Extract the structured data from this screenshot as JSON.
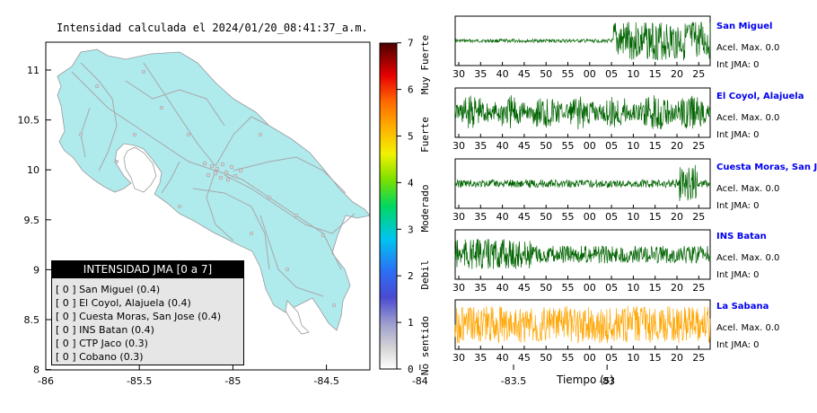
{
  "map": {
    "title": "Intensidad calculada el 2024/01/20_08:41:37_a.m.",
    "x_ticks": [
      "-86",
      "-85.5",
      "-85",
      "-84.5",
      "-84",
      "-83.5",
      "-83"
    ],
    "y_ticks": [
      "11",
      "10.5",
      "10",
      "9.5",
      "9",
      "8.5",
      "8"
    ],
    "colors": {
      "land": "#afeaed",
      "roads": "#a8a8a8",
      "sea": "#ffffff",
      "legend_bg": "#e6e6e6"
    }
  },
  "legend": {
    "title": "INTENSIDAD JMA [0 a 7]",
    "items": [
      "[ 0 ] San Miguel (0.4)",
      "[ 0 ] El Coyol, Alajuela (0.4)",
      "[ 0 ] Cuesta Moras, San Jose (0.4)",
      "[ 0 ] INS Batan (0.4)",
      "[ 0 ] CTP Jaco (0.3)",
      "[ 0 ] Cobano (0.3)"
    ]
  },
  "scale": {
    "ticks": [
      "0",
      "1",
      "2",
      "3",
      "4",
      "5",
      "6",
      "7"
    ],
    "labels": [
      "No sentido",
      "Debil",
      "Moderado",
      "Fuerte",
      "Muy Fuerte"
    ]
  },
  "waveforms": {
    "xlabel": "Tiempo (s)",
    "x_ticks": [
      "30",
      "35",
      "40",
      "45",
      "50",
      "55",
      "00",
      "05",
      "10",
      "15",
      "20",
      "25"
    ],
    "stations": [
      {
        "name": "San Miguel",
        "acel": "Acel. Max. 0.0",
        "int": "Int JMA: 0",
        "color": "#006400"
      },
      {
        "name": "El Coyol, Alajuela",
        "acel": "Acel. Max. 0.0",
        "int": "Int JMA: 0",
        "color": "#006400"
      },
      {
        "name": "Cuesta Moras, San Jose",
        "acel": "Acel. Max. 0.0",
        "int": "Int JMA: 0",
        "color": "#006400"
      },
      {
        "name": "INS Batan",
        "acel": "Acel. Max. 0.0",
        "int": "Int JMA: 0",
        "color": "#006400"
      },
      {
        "name": "La Sabana",
        "acel": "Acel. Max. 0.0",
        "int": "Int JMA: 0",
        "color": "#ffa500"
      }
    ]
  },
  "chart_data": [
    {
      "type": "map",
      "title": "Intensidad calculada el 2024/01/20_08:41:37_a.m.",
      "xlim": [
        -86,
        -82.6
      ],
      "ylim": [
        8,
        11.3
      ],
      "legend_title": "INTENSIDAD JMA [0 a 7]",
      "stations": [
        {
          "name": "San Miguel",
          "intensity_class": 0,
          "value": 0.4
        },
        {
          "name": "El Coyol, Alajuela",
          "intensity_class": 0,
          "value": 0.4
        },
        {
          "name": "Cuesta Moras, San Jose",
          "intensity_class": 0,
          "value": 0.4
        },
        {
          "name": "INS Batan",
          "intensity_class": 0,
          "value": 0.4
        },
        {
          "name": "CTP Jaco",
          "intensity_class": 0,
          "value": 0.3
        },
        {
          "name": "Cobano",
          "intensity_class": 0,
          "value": 0.3
        }
      ]
    },
    {
      "type": "line",
      "xlabel": "Tiempo (s)",
      "x_ticks": [
        "30",
        "35",
        "40",
        "45",
        "50",
        "55",
        "00",
        "05",
        "10",
        "15",
        "20",
        "25"
      ],
      "series": [
        {
          "name": "San Miguel",
          "acel_max": 0.0,
          "int_jma": 0
        },
        {
          "name": "El Coyol, Alajuela",
          "acel_max": 0.0,
          "int_jma": 0
        },
        {
          "name": "Cuesta Moras, San Jose",
          "acel_max": 0.0,
          "int_jma": 0
        },
        {
          "name": "INS Batan",
          "acel_max": 0.0,
          "int_jma": 0
        },
        {
          "name": "La Sabana",
          "acel_max": 0.0,
          "int_jma": 0
        }
      ]
    }
  ]
}
